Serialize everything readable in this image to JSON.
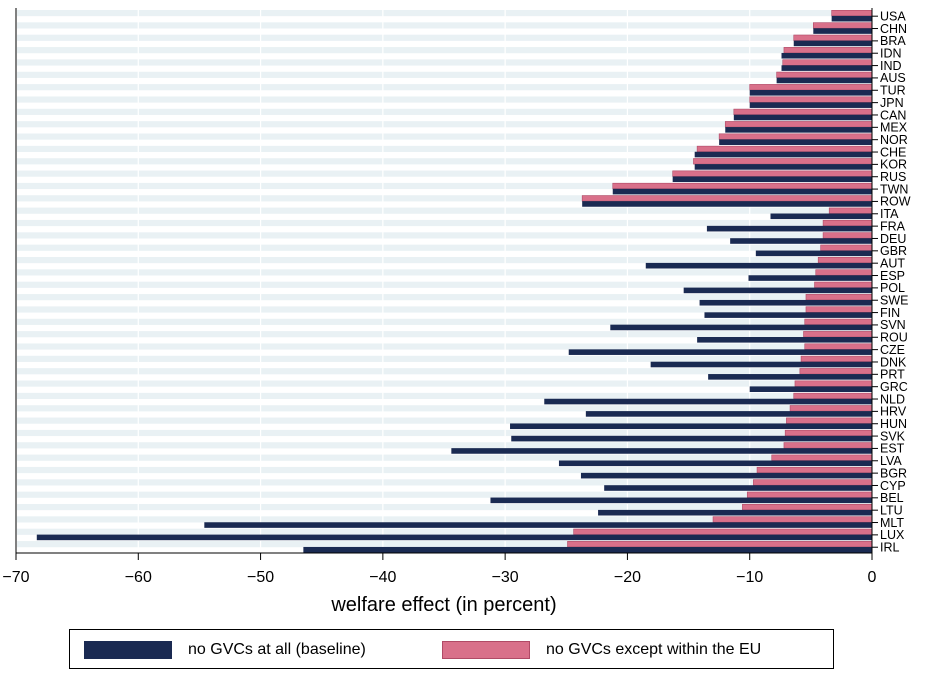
{
  "chart_data": {
    "type": "bar",
    "orientation": "horizontal",
    "xlabel": "welfare effect (in percent)",
    "xlim": [
      -70,
      0
    ],
    "xticks": [
      -70,
      -60,
      -50,
      -40,
      -30,
      -20,
      -10,
      0
    ],
    "xtick_labels": [
      "−70",
      "−60",
      "−50",
      "−40",
      "−30",
      "−20",
      "−10",
      "0"
    ],
    "grid": true,
    "legend_position": "bottom",
    "categories": [
      "USA",
      "CHN",
      "BRA",
      "IDN",
      "IND",
      "AUS",
      "TUR",
      "JPN",
      "CAN",
      "MEX",
      "NOR",
      "CHE",
      "KOR",
      "RUS",
      "TWN",
      "ROW",
      "ITA",
      "FRA",
      "DEU",
      "GBR",
      "AUT",
      "ESP",
      "POL",
      "SWE",
      "FIN",
      "SVN",
      "ROU",
      "CZE",
      "DNK",
      "PRT",
      "GRC",
      "NLD",
      "HRV",
      "HUN",
      "SVK",
      "EST",
      "LVA",
      "BGR",
      "CYP",
      "BEL",
      "LTU",
      "MLT",
      "LUX",
      "IRL"
    ],
    "series": [
      {
        "name": "no GVCs at all (baseline)",
        "color": "#1a2a52",
        "values": [
          -3.3,
          -4.8,
          -6.4,
          -7.4,
          -7.4,
          -7.8,
          -10.0,
          -10.0,
          -11.3,
          -12.0,
          -12.5,
          -14.5,
          -14.5,
          -16.3,
          -21.2,
          -23.7,
          -8.3,
          -13.5,
          -11.6,
          -9.5,
          -18.5,
          -10.1,
          -15.4,
          -14.1,
          -13.7,
          -21.4,
          -14.3,
          -24.8,
          -18.1,
          -13.4,
          -10.0,
          -26.8,
          -23.4,
          -29.6,
          -29.5,
          -34.4,
          -25.6,
          -23.8,
          -21.9,
          -31.2,
          -22.4,
          -54.6,
          -68.3,
          -46.5
        ]
      },
      {
        "name": "no GVCs except within the EU",
        "color": "#d9708a",
        "values": [
          -3.3,
          -4.8,
          -6.4,
          -7.2,
          -7.3,
          -7.8,
          -10.0,
          -10.0,
          -11.3,
          -12.0,
          -12.5,
          -14.3,
          -14.6,
          -16.3,
          -21.2,
          -23.7,
          -3.5,
          -4.0,
          -4.0,
          -4.2,
          -4.4,
          -4.6,
          -4.7,
          -5.4,
          -5.4,
          -5.5,
          -5.6,
          -5.5,
          -5.8,
          -5.9,
          -6.3,
          -6.4,
          -6.7,
          -7.0,
          -7.1,
          -7.2,
          -8.2,
          -9.4,
          -9.7,
          -10.2,
          -10.6,
          -13.0,
          -24.4,
          -24.9
        ]
      }
    ]
  }
}
